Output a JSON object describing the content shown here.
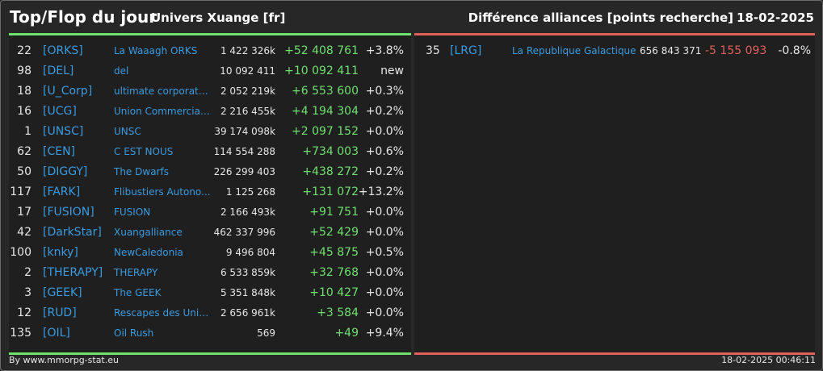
{
  "header": {
    "title": "Top/Flop du jour",
    "universe": "Univers Xuange [fr]",
    "metric": "Différence alliances [points recherche]",
    "date": "18-02-2025"
  },
  "colors": {
    "positive": "#6fe06f",
    "negative": "#e0605a",
    "link": "#3a9be0",
    "background": "#272727",
    "panel": "#1f1f1f"
  },
  "top": [
    {
      "rank": "22",
      "tag": "[ORKS]",
      "name": "La Waaagh ORKS",
      "points": "1 422 326k",
      "diff": "+52 408 761",
      "pct": "+3.8%"
    },
    {
      "rank": "98",
      "tag": "[DEL]",
      "name": "del",
      "points": "10 092 411",
      "diff": "+10 092 411",
      "pct": "new"
    },
    {
      "rank": "18",
      "tag": "[U_Corp]",
      "name": "ultimate corporation",
      "points": "2 052 219k",
      "diff": "+6 553 600",
      "pct": "+0.3%"
    },
    {
      "rank": "16",
      "tag": "[UCG]",
      "name": "Union Commerciale...",
      "points": "2 216 455k",
      "diff": "+4 194 304",
      "pct": "+0.2%"
    },
    {
      "rank": "1",
      "tag": "[UNSC]",
      "name": "UNSC",
      "points": "39 174 098k",
      "diff": "+2 097 152",
      "pct": "+0.0%"
    },
    {
      "rank": "62",
      "tag": "[CEN]",
      "name": "C EST NOUS",
      "points": "114 554 288",
      "diff": "+734 003",
      "pct": "+0.6%"
    },
    {
      "rank": "50",
      "tag": "[DIGGY]",
      "name": "The Dwarfs",
      "points": "226 299 403",
      "diff": "+438 272",
      "pct": "+0.2%"
    },
    {
      "rank": "117",
      "tag": "[FARK]",
      "name": "Flibustiers Autono...",
      "points": "1 125 268",
      "diff": "+131 072",
      "pct": "+13.2%"
    },
    {
      "rank": "17",
      "tag": "[FUSION]",
      "name": "FUSION",
      "points": "2 166 493k",
      "diff": "+91 751",
      "pct": "+0.0%"
    },
    {
      "rank": "42",
      "tag": "[DarkStar]",
      "name": "Xuangalliance",
      "points": "462 337 996",
      "diff": "+52 429",
      "pct": "+0.0%"
    },
    {
      "rank": "100",
      "tag": "[knky]",
      "name": "NewCaledonia",
      "points": "9 496 804",
      "diff": "+45 875",
      "pct": "+0.5%"
    },
    {
      "rank": "2",
      "tag": "[THERAPY]",
      "name": "THERAPY",
      "points": "6 533 859k",
      "diff": "+32 768",
      "pct": "+0.0%"
    },
    {
      "rank": "3",
      "tag": "[GEEK]",
      "name": "The GEEK",
      "points": "5 351 848k",
      "diff": "+10 427",
      "pct": "+0.0%"
    },
    {
      "rank": "12",
      "tag": "[RUD]",
      "name": "Rescapes des Univ...",
      "points": "2 656 961k",
      "diff": "+3 584",
      "pct": "+0.0%"
    },
    {
      "rank": "135",
      "tag": "[OIL]",
      "name": "Oil Rush",
      "points": "569",
      "diff": "+49",
      "pct": "+9.4%"
    }
  ],
  "flop": [
    {
      "rank": "35",
      "tag": "[LRG]",
      "name": "La Republique Galactique",
      "points": "656 843 371",
      "diff": "-5 155 093",
      "pct": "-0.8%"
    }
  ],
  "footer": {
    "credit": "By www.mmorpg-stat.eu",
    "timestamp": "18-02-2025 00:46:11"
  }
}
